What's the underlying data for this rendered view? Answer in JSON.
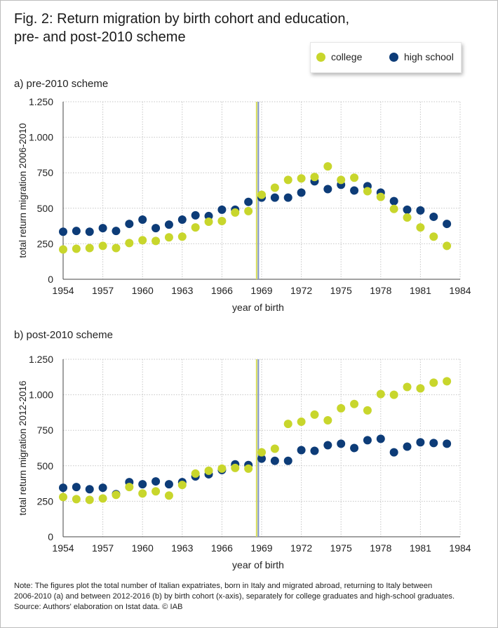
{
  "title": {
    "line1": "Fig. 2: Return migration by birth cohort and education,",
    "line2": "pre- and post-2010 scheme"
  },
  "legend": {
    "college": "college",
    "high_school": "high school"
  },
  "colors": {
    "college": "#c8d62c",
    "high_school": "#0d3c78",
    "vline_yellow": "#d6dc5a",
    "vline_blue": "#7f95c5",
    "grid": "#c6c6c6",
    "axis": "#444444"
  },
  "chart_data": [
    {
      "type": "scatter",
      "panel_title": "a) pre-2010 scheme",
      "xlabel": "year of birth",
      "ylabel": "total return migration 2006-2010",
      "xlim": [
        1954,
        1984
      ],
      "ylim": [
        0,
        1250
      ],
      "xticks": [
        1954,
        1957,
        1960,
        1963,
        1966,
        1969,
        1972,
        1975,
        1978,
        1981,
        1984
      ],
      "yticks": [
        0,
        250,
        500,
        750,
        1000,
        1250
      ],
      "ytick_labels": [
        "0",
        "250",
        "500",
        "750",
        "1.000",
        "1.250"
      ],
      "grid": true,
      "vertical_line_x": 1968.7,
      "x": [
        1954,
        1955,
        1956,
        1957,
        1958,
        1959,
        1960,
        1961,
        1962,
        1963,
        1964,
        1965,
        1966,
        1967,
        1968,
        1969,
        1970,
        1971,
        1972,
        1973,
        1974,
        1975,
        1976,
        1977,
        1978,
        1979,
        1980,
        1981,
        1982,
        1983
      ],
      "series": [
        {
          "name": "college",
          "values": [
            210,
            215,
            220,
            235,
            220,
            255,
            275,
            270,
            295,
            300,
            365,
            405,
            410,
            470,
            480,
            595,
            645,
            700,
            710,
            720,
            795,
            700,
            715,
            620,
            580,
            495,
            435,
            365,
            300,
            235
          ]
        },
        {
          "name": "high school",
          "values": [
            335,
            340,
            335,
            360,
            340,
            390,
            420,
            360,
            385,
            420,
            450,
            445,
            490,
            490,
            545,
            575,
            575,
            575,
            610,
            690,
            635,
            665,
            625,
            655,
            610,
            550,
            490,
            485,
            440,
            390
          ]
        }
      ]
    },
    {
      "type": "scatter",
      "panel_title": "b) post-2010 scheme",
      "xlabel": "year of birth",
      "ylabel": "total return migration 2012-2016",
      "xlim": [
        1954,
        1984
      ],
      "ylim": [
        0,
        1250
      ],
      "xticks": [
        1954,
        1957,
        1960,
        1963,
        1966,
        1969,
        1972,
        1975,
        1978,
        1981,
        1984
      ],
      "yticks": [
        0,
        250,
        500,
        750,
        1000,
        1250
      ],
      "ytick_labels": [
        "0",
        "250",
        "500",
        "750",
        "1.000",
        "1.250"
      ],
      "grid": true,
      "vertical_line_x": 1968.7,
      "x": [
        1954,
        1955,
        1956,
        1957,
        1958,
        1959,
        1960,
        1961,
        1962,
        1963,
        1964,
        1965,
        1966,
        1967,
        1968,
        1969,
        1970,
        1971,
        1972,
        1973,
        1974,
        1975,
        1976,
        1977,
        1978,
        1979,
        1980,
        1981,
        1982,
        1983
      ],
      "series": [
        {
          "name": "college",
          "values": [
            280,
            265,
            260,
            270,
            295,
            350,
            305,
            320,
            290,
            365,
            445,
            465,
            480,
            485,
            480,
            595,
            620,
            795,
            810,
            860,
            820,
            905,
            935,
            890,
            1005,
            1000,
            1055,
            1045,
            1085,
            1095
          ]
        },
        {
          "name": "high school",
          "values": [
            345,
            350,
            335,
            345,
            300,
            385,
            370,
            390,
            370,
            385,
            425,
            440,
            470,
            510,
            505,
            550,
            535,
            535,
            610,
            605,
            645,
            655,
            625,
            680,
            690,
            595,
            635,
            665,
            660,
            655
          ]
        }
      ]
    }
  ],
  "note": {
    "line1": "Note: The figures plot the total number of Italian expatriates, born in Italy and migrated abroad, returning to Italy between",
    "line2": "2006-2010 (a) and between 2012-2016 (b) by birth cohort (x-axis), separately for college graduates and high-school graduates.",
    "line3": "Source: Authors' elaboration on Istat data.  © IAB"
  }
}
